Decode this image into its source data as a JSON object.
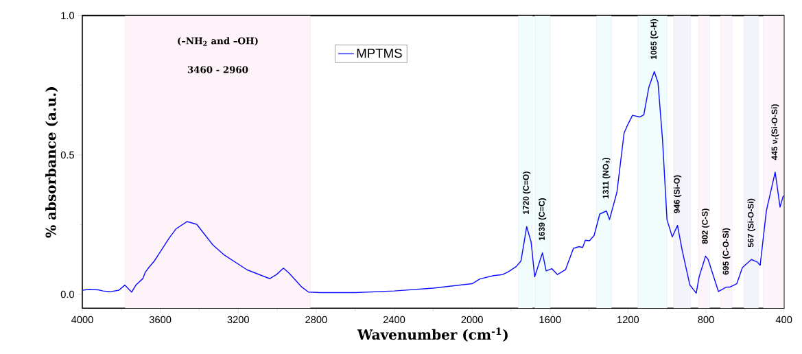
{
  "chart_data": {
    "type": "line",
    "xlabel": "Wavenumber (cm$^{-1}$)",
    "ylabel": "% absorbance (a.u.)",
    "xlim": [
      4000,
      400
    ],
    "xticks": [
      4000,
      3600,
      3200,
      2800,
      2400,
      2000,
      1600,
      1200,
      800,
      400
    ],
    "ylim": [
      -0.05,
      1.0
    ],
    "yticks": [
      {
        "value": 0,
        "label": "0.0"
      },
      {
        "value": 0.5,
        "label": "0.5"
      },
      {
        "value": 1,
        "label": "1.0"
      }
    ],
    "legend": "top",
    "grid": false,
    "series": [
      {
        "name": "MPTMS",
        "color": "#1010ff",
        "x": [
          3999,
          3964,
          3918,
          3894,
          3859,
          3812,
          3782,
          3747,
          3724,
          3689,
          3677,
          3659,
          3630,
          3607,
          3554,
          3519,
          3462,
          3413,
          3331,
          3272,
          3155,
          3038,
          3003,
          2968,
          2938,
          2909,
          2874,
          2839,
          2780,
          2600,
          2400,
          2200,
          2000,
          1960,
          1890,
          1843,
          1814,
          1773,
          1749,
          1720,
          1697,
          1679,
          1639,
          1620,
          1591,
          1562,
          1521,
          1480,
          1451,
          1433,
          1419,
          1398,
          1374,
          1345,
          1311,
          1295,
          1257,
          1220,
          1199,
          1177,
          1140,
          1119,
          1093,
          1065,
          1046,
          1023,
          1000,
          973,
          946,
          923,
          883,
          850,
          835,
          802,
          789,
          736,
          695,
          677,
          642,
          613,
          567,
          537,
          522,
          490,
          445,
          437,
          420,
          403
        ],
        "values": [
          0.015,
          0.018,
          0.016,
          0.012,
          0.009,
          0.015,
          0.033,
          0.008,
          0.034,
          0.057,
          0.079,
          0.096,
          0.12,
          0.145,
          0.202,
          0.235,
          0.261,
          0.251,
          0.178,
          0.141,
          0.088,
          0.056,
          0.071,
          0.094,
          0.075,
          0.053,
          0.026,
          0.008,
          0.006,
          0.006,
          0.012,
          0.022,
          0.038,
          0.055,
          0.067,
          0.071,
          0.081,
          0.1,
          0.12,
          0.243,
          0.187,
          0.063,
          0.149,
          0.084,
          0.092,
          0.071,
          0.088,
          0.165,
          0.171,
          0.168,
          0.194,
          0.192,
          0.211,
          0.288,
          0.299,
          0.268,
          0.366,
          0.579,
          0.612,
          0.642,
          0.636,
          0.644,
          0.743,
          0.799,
          0.759,
          0.555,
          0.268,
          0.206,
          0.247,
          0.161,
          0.034,
          0.004,
          0.063,
          0.137,
          0.125,
          0.01,
          0.026,
          0.026,
          0.038,
          0.096,
          0.125,
          0.116,
          0.104,
          0.3,
          0.438,
          0.399,
          0.313,
          0.354
        ]
      }
    ],
    "bands": [
      {
        "axis": "x",
        "from": 3780,
        "to": 2830,
        "color": "#fdf3f9",
        "label": "(–NH$_{2}$ and –OH)"
      },
      {
        "axis": "x",
        "from": 1764,
        "to": 1690,
        "color": "#f1fcfc"
      },
      {
        "axis": "x",
        "from": 1678,
        "to": 1599,
        "color": "#f1fcfc"
      },
      {
        "axis": "x",
        "from": 1362,
        "to": 1285,
        "color": "#f1fcfc"
      },
      {
        "axis": "x",
        "from": 1150,
        "to": 999,
        "color": "#f1fcfc"
      },
      {
        "axis": "x",
        "from": 966,
        "to": 879,
        "color": "#f3f3fc"
      },
      {
        "axis": "x",
        "from": 839,
        "to": 781,
        "color": "#fcf4fb"
      },
      {
        "axis": "x",
        "from": 726,
        "to": 667,
        "color": "#fcf4fb"
      },
      {
        "axis": "x",
        "from": 605,
        "to": 530,
        "color": "#f3f3fc"
      },
      {
        "axis": "x",
        "from": 506,
        "to": 400,
        "color": "#fcf4fb"
      }
    ],
    "annotations": [
      "3460 - 2960",
      {
        "text": "1720 (C=O)",
        "x": 1720,
        "y": 0.243
      },
      {
        "text": "1639 (C=C)",
        "x": 1639,
        "y": 0.149
      },
      {
        "text": "1311 (NO$_{3}$)",
        "x": 1311,
        "y": 0.299
      },
      {
        "text": "1065 (C-H)",
        "x": 1065,
        "y": 0.799
      },
      {
        "text": "946 (Si-O)",
        "x": 946,
        "y": 0.247
      },
      {
        "text": "802 (C-S)",
        "x": 802,
        "y": 0.137
      },
      {
        "text": "695 (C-O-Si)",
        "x": 695,
        "y": 0.026
      },
      {
        "text": "567 (Si-O-Si)",
        "x": 567,
        "y": 0.125
      },
      {
        "text": "445 ν$_{r}$(Si-O-Si)",
        "x": 445,
        "y": 0.438
      }
    ]
  }
}
